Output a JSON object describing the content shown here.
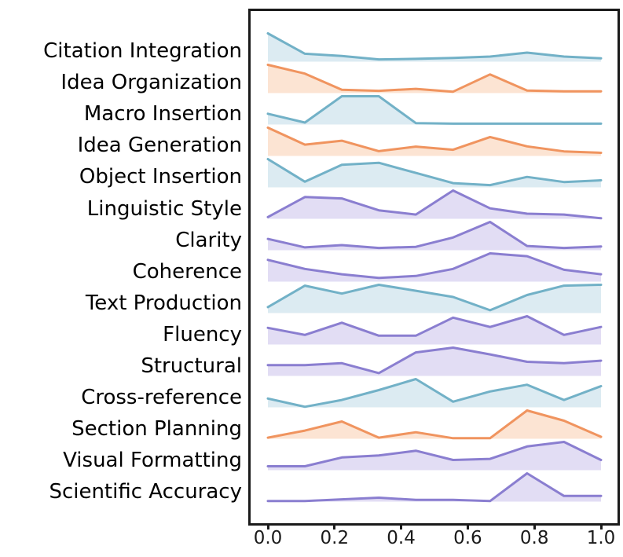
{
  "figure": {
    "background": "#ffffff",
    "frame_color": "#1a1a1a",
    "text_color": "#000000"
  },
  "chart_data": {
    "type": "area",
    "variant": "ridgeline",
    "title": "",
    "xlabel": "",
    "ylabel": "",
    "xlim": [
      0.0,
      1.0
    ],
    "grid": false,
    "legend": false,
    "x_ticks": [
      "0.0",
      "0.2",
      "0.4",
      "0.6",
      "0.8",
      "1.0"
    ],
    "x_tick_values": [
      0.0,
      0.2,
      0.4,
      0.6,
      0.8,
      1.0
    ],
    "x": [
      0.0,
      0.111,
      0.222,
      0.333,
      0.444,
      0.556,
      0.667,
      0.778,
      0.889,
      1.0
    ],
    "palette": {
      "teal": {
        "line": "#72b1c7",
        "fill": "#dcebf2"
      },
      "orange": {
        "line": "#f0945f",
        "fill": "#fce4d3"
      },
      "purple": {
        "line": "#8a7ed0",
        "fill": "#e2ddf4"
      }
    },
    "series": [
      {
        "name": "Citation Integration",
        "color": "teal",
        "values": [
          1.0,
          0.28,
          0.2,
          0.08,
          0.1,
          0.13,
          0.18,
          0.32,
          0.18,
          0.12
        ]
      },
      {
        "name": "Idea Organization",
        "color": "orange",
        "values": [
          1.0,
          0.69,
          0.12,
          0.08,
          0.15,
          0.05,
          0.66,
          0.09,
          0.06,
          0.06
        ]
      },
      {
        "name": "Macro Insertion",
        "color": "teal",
        "values": [
          0.38,
          0.07,
          1.0,
          1.0,
          0.05,
          0.03,
          0.03,
          0.03,
          0.03,
          0.03
        ]
      },
      {
        "name": "Idea Generation",
        "color": "orange",
        "values": [
          1.0,
          0.4,
          0.54,
          0.17,
          0.33,
          0.22,
          0.67,
          0.34,
          0.16,
          0.11
        ]
      },
      {
        "name": "Object Insertion",
        "color": "teal",
        "values": [
          1.0,
          0.2,
          0.8,
          0.87,
          0.51,
          0.15,
          0.08,
          0.37,
          0.19,
          0.25
        ]
      },
      {
        "name": "Linguistic Style",
        "color": "purple",
        "values": [
          0.06,
          0.77,
          0.72,
          0.3,
          0.15,
          1.0,
          0.37,
          0.18,
          0.15,
          0.02
        ]
      },
      {
        "name": "Clarity",
        "color": "purple",
        "values": [
          0.4,
          0.1,
          0.18,
          0.08,
          0.12,
          0.45,
          1.0,
          0.15,
          0.08,
          0.13
        ]
      },
      {
        "name": "Coherence",
        "color": "purple",
        "values": [
          0.77,
          0.45,
          0.26,
          0.13,
          0.2,
          0.45,
          1.0,
          0.9,
          0.42,
          0.26
        ]
      },
      {
        "name": "Text Production",
        "color": "teal",
        "values": [
          0.21,
          0.97,
          0.69,
          1.0,
          0.79,
          0.57,
          0.1,
          0.64,
          0.97,
          1.0
        ]
      },
      {
        "name": "Fluency",
        "color": "purple",
        "values": [
          0.59,
          0.34,
          0.77,
          0.31,
          0.31,
          0.95,
          0.62,
          1.0,
          0.34,
          0.62
        ]
      },
      {
        "name": "Structural",
        "color": "purple",
        "values": [
          0.38,
          0.38,
          0.45,
          0.1,
          0.83,
          1.0,
          0.76,
          0.5,
          0.45,
          0.54
        ]
      },
      {
        "name": "Cross-reference",
        "color": "teal",
        "values": [
          0.31,
          0.02,
          0.26,
          0.61,
          1.0,
          0.2,
          0.56,
          0.8,
          0.26,
          0.75
        ]
      },
      {
        "name": "Section Planning",
        "color": "orange",
        "values": [
          0.04,
          0.29,
          0.61,
          0.04,
          0.23,
          0.02,
          0.02,
          1.0,
          0.64,
          0.07
        ]
      },
      {
        "name": "Visual Formatting",
        "color": "purple",
        "values": [
          0.14,
          0.14,
          0.45,
          0.52,
          0.69,
          0.36,
          0.4,
          0.84,
          1.0,
          0.36
        ]
      },
      {
        "name": "Scientific Accuracy",
        "color": "purple",
        "values": [
          0.02,
          0.02,
          0.08,
          0.14,
          0.06,
          0.06,
          0.02,
          1.0,
          0.2,
          0.2
        ]
      }
    ]
  }
}
